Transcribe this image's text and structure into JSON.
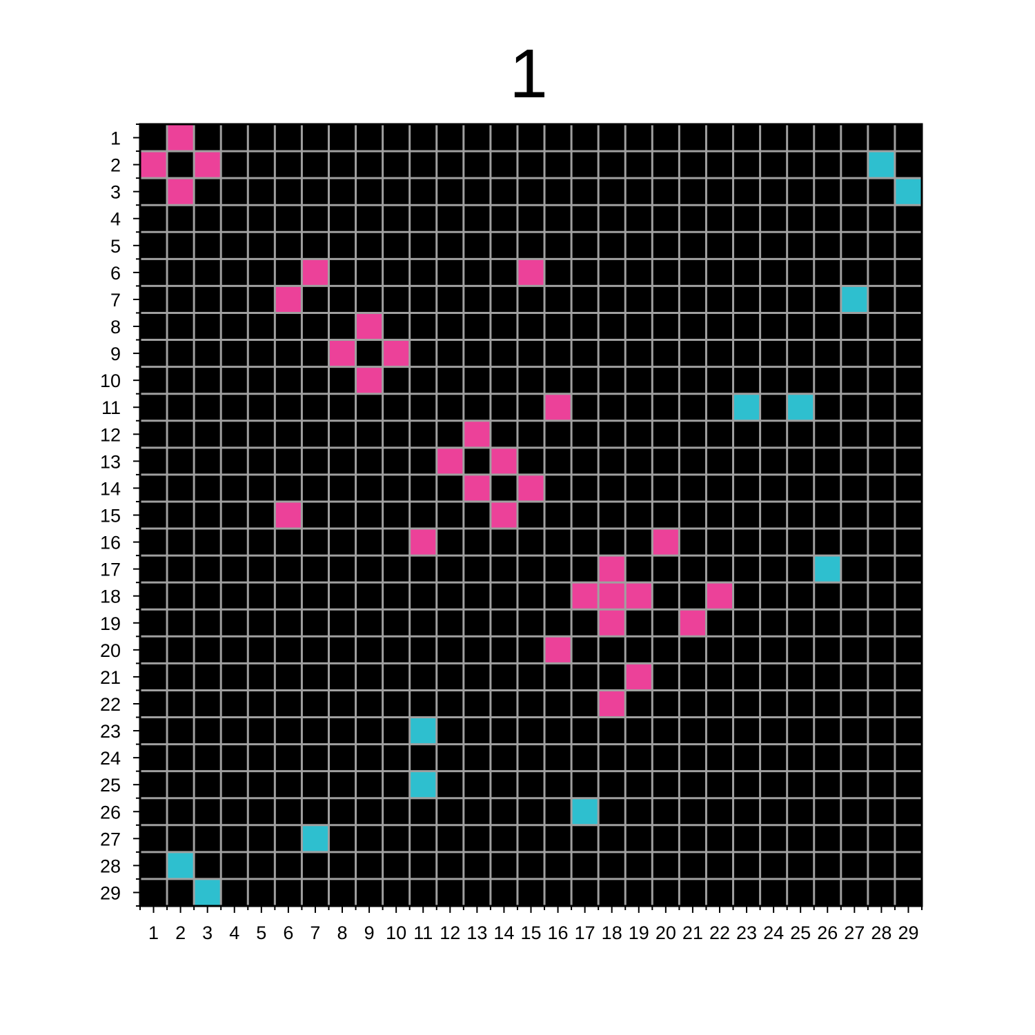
{
  "chart_data": {
    "type": "heatmap",
    "title": "1",
    "xlabel": "",
    "ylabel": "",
    "rows": 29,
    "cols": 29,
    "x_ticks": [
      "1",
      "2",
      "3",
      "4",
      "5",
      "6",
      "7",
      "8",
      "9",
      "10",
      "11",
      "12",
      "13",
      "14",
      "15",
      "16",
      "17",
      "18",
      "19",
      "20",
      "21",
      "22",
      "23",
      "24",
      "25",
      "26",
      "27",
      "28",
      "29"
    ],
    "y_ticks": [
      "1",
      "2",
      "3",
      "4",
      "5",
      "6",
      "7",
      "8",
      "9",
      "10",
      "11",
      "12",
      "13",
      "14",
      "15",
      "16",
      "17",
      "18",
      "19",
      "20",
      "21",
      "22",
      "23",
      "24",
      "25",
      "26",
      "27",
      "28",
      "29"
    ],
    "grid": true,
    "colors": {
      "background": "#000000",
      "pink": "#ec4199",
      "cyan": "#2ebfcf",
      "grid": "#a0a0a0"
    },
    "cells": [
      {
        "row": 1,
        "col": 2,
        "color": "pink"
      },
      {
        "row": 2,
        "col": 1,
        "color": "pink"
      },
      {
        "row": 2,
        "col": 3,
        "color": "pink"
      },
      {
        "row": 2,
        "col": 28,
        "color": "cyan"
      },
      {
        "row": 3,
        "col": 2,
        "color": "pink"
      },
      {
        "row": 3,
        "col": 29,
        "color": "cyan"
      },
      {
        "row": 6,
        "col": 7,
        "color": "pink"
      },
      {
        "row": 6,
        "col": 15,
        "color": "pink"
      },
      {
        "row": 7,
        "col": 6,
        "color": "pink"
      },
      {
        "row": 7,
        "col": 27,
        "color": "cyan"
      },
      {
        "row": 8,
        "col": 9,
        "color": "pink"
      },
      {
        "row": 9,
        "col": 8,
        "color": "pink"
      },
      {
        "row": 9,
        "col": 10,
        "color": "pink"
      },
      {
        "row": 10,
        "col": 9,
        "color": "pink"
      },
      {
        "row": 11,
        "col": 16,
        "color": "pink"
      },
      {
        "row": 11,
        "col": 23,
        "color": "cyan"
      },
      {
        "row": 11,
        "col": 25,
        "color": "cyan"
      },
      {
        "row": 12,
        "col": 13,
        "color": "pink"
      },
      {
        "row": 13,
        "col": 12,
        "color": "pink"
      },
      {
        "row": 13,
        "col": 14,
        "color": "pink"
      },
      {
        "row": 14,
        "col": 13,
        "color": "pink"
      },
      {
        "row": 14,
        "col": 15,
        "color": "pink"
      },
      {
        "row": 15,
        "col": 6,
        "color": "pink"
      },
      {
        "row": 15,
        "col": 14,
        "color": "pink"
      },
      {
        "row": 16,
        "col": 11,
        "color": "pink"
      },
      {
        "row": 16,
        "col": 20,
        "color": "pink"
      },
      {
        "row": 17,
        "col": 18,
        "color": "pink"
      },
      {
        "row": 17,
        "col": 26,
        "color": "cyan"
      },
      {
        "row": 18,
        "col": 17,
        "color": "pink"
      },
      {
        "row": 18,
        "col": 18,
        "color": "pink"
      },
      {
        "row": 18,
        "col": 19,
        "color": "pink"
      },
      {
        "row": 18,
        "col": 22,
        "color": "pink"
      },
      {
        "row": 19,
        "col": 18,
        "color": "pink"
      },
      {
        "row": 19,
        "col": 21,
        "color": "pink"
      },
      {
        "row": 20,
        "col": 16,
        "color": "pink"
      },
      {
        "row": 21,
        "col": 19,
        "color": "pink"
      },
      {
        "row": 22,
        "col": 18,
        "color": "pink"
      },
      {
        "row": 23,
        "col": 11,
        "color": "cyan"
      },
      {
        "row": 25,
        "col": 11,
        "color": "cyan"
      },
      {
        "row": 26,
        "col": 17,
        "color": "cyan"
      },
      {
        "row": 27,
        "col": 7,
        "color": "cyan"
      },
      {
        "row": 28,
        "col": 2,
        "color": "cyan"
      },
      {
        "row": 29,
        "col": 3,
        "color": "cyan"
      }
    ]
  }
}
